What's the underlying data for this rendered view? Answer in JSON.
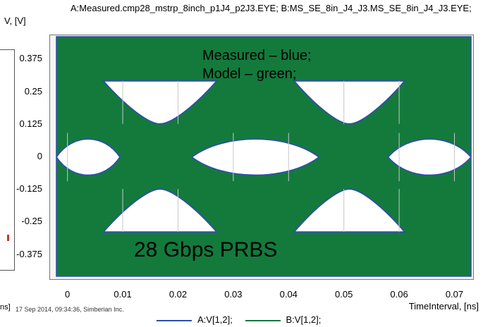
{
  "title": "A:Measured.cmp28_mstrp_8inch_p1J4_p2J3.EYE; B:MS_SE_8in_J4_J3.MS_SE_8in_J4_J3.EYE;",
  "footer": "17 Sep 2014, 09:34:36, Simberian Inc.",
  "left_unit": "ns]",
  "annotations": {
    "note_line1": "Measured – blue;",
    "note_line2": "Model – green;",
    "big_label": "28 Gbps PRBS"
  },
  "colors": {
    "measured": "#2e4fa8",
    "model": "#137a3c",
    "eye_interior": "#ffffff",
    "plot_bg": "#f4f4f4",
    "grid": "#c8c8c8"
  },
  "chart_data": {
    "type": "line",
    "ylabel": "V, [V]",
    "xlabel": "TimeInterval, [ns]",
    "xlim": [
      -0.002,
      0.073
    ],
    "ylim": [
      -0.46,
      0.46
    ],
    "x_ticks": [
      0,
      0.01,
      0.02,
      0.03,
      0.04,
      0.05,
      0.06,
      0.07
    ],
    "x_tick_labels": [
      "0",
      "0.01",
      "0.02",
      "0.03",
      "0.04",
      "0.05",
      "0.06",
      "0.07"
    ],
    "y_ticks": [
      0.375,
      0.25,
      0.125,
      0,
      -0.125,
      -0.25,
      -0.375
    ],
    "y_tick_labels": [
      "0.375",
      "0.25",
      "0.125",
      "0",
      "-0.125",
      "-0.25",
      "-0.375"
    ],
    "grid": true,
    "legend_position": "bottom",
    "series": [
      {
        "name": "A:V[1,2];",
        "color": "#2e4fa8"
      },
      {
        "name": "B:V[1,2];",
        "color": "#137a3c"
      }
    ],
    "eye_openings": [
      {
        "x": [
          -0.002,
          0.0095
        ],
        "top": 0.09,
        "bottom": -0.095,
        "band": "center"
      },
      {
        "x": [
          0.0225,
          0.0455
        ],
        "top": 0.09,
        "bottom": -0.095,
        "band": "center"
      },
      {
        "x": [
          0.058,
          0.073
        ],
        "top": 0.09,
        "bottom": -0.095,
        "band": "center"
      },
      {
        "x": [
          0.0065,
          0.027
        ],
        "top": 0.29,
        "bottom": 0.125,
        "band": "upper"
      },
      {
        "x": [
          0.041,
          0.061
        ],
        "top": 0.29,
        "bottom": 0.125,
        "band": "upper"
      },
      {
        "x": [
          0.0065,
          0.027
        ],
        "top": -0.125,
        "bottom": -0.29,
        "band": "lower"
      },
      {
        "x": [
          0.041,
          0.061
        ],
        "top": -0.125,
        "bottom": -0.29,
        "band": "lower"
      }
    ]
  }
}
